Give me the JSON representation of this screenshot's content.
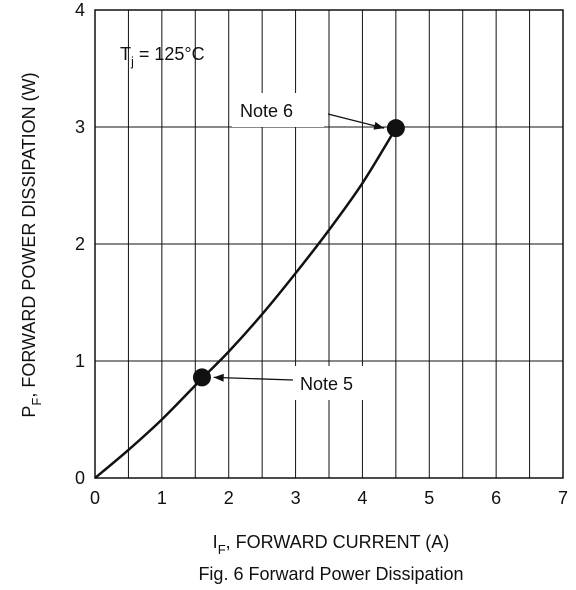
{
  "chart_data": {
    "type": "line",
    "caption": "Fig. 6  Forward Power Dissipation",
    "xlabel": {
      "main": "I",
      "sub": "F",
      "rest": ", FORWARD CURRENT (A)"
    },
    "ylabel": {
      "main": "P",
      "sub": "F",
      "rest": ", FORWARD POWER DISSIPATION (W)"
    },
    "xlim": [
      0,
      7
    ],
    "ylim": [
      0,
      4
    ],
    "xticks": [
      0,
      1,
      2,
      3,
      4,
      5,
      6,
      7
    ],
    "yticks": [
      0,
      1,
      2,
      3,
      4
    ],
    "x_minor_step": 0.5,
    "y_minor_step": 1,
    "grid": true,
    "condition": {
      "main": "T",
      "sub": "j",
      "rest": " = 125°C"
    },
    "series": [
      {
        "x": [
          0,
          0.5,
          1.0,
          1.6,
          2.0,
          2.5,
          3.0,
          3.5,
          4.0,
          4.5
        ],
        "y": [
          0,
          0.24,
          0.5,
          0.85,
          1.08,
          1.4,
          1.75,
          2.12,
          2.52,
          2.99
        ]
      }
    ],
    "markers": [
      {
        "x": 1.6,
        "y": 0.86,
        "label": "Note 5"
      },
      {
        "x": 4.5,
        "y": 2.99,
        "label": "Note 6"
      }
    ],
    "colors": {
      "line": "#111111",
      "grid": "#111111",
      "background": "#ffffff"
    }
  }
}
